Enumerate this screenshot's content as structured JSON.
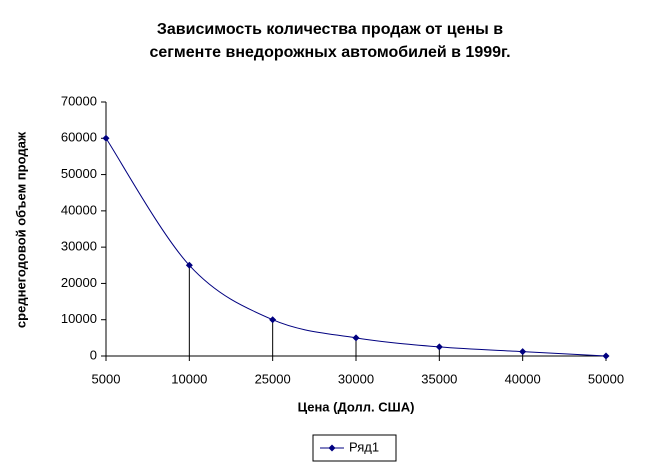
{
  "chart_data": {
    "type": "line",
    "title": [
      "Зависимость количества продаж от цены в",
      "сегменте внедорожных автомобилей в 1999г."
    ],
    "x_label": "Цена (Долл. США)",
    "y_label": "среднегодовой объем продаж",
    "categories": [
      "5000",
      "10000",
      "25000",
      "30000",
      "35000",
      "40000",
      "50000"
    ],
    "series": [
      {
        "name": "Ряд1",
        "color": "#000080",
        "values": [
          60000,
          25000,
          10000,
          5000,
          2500,
          1200,
          0
        ]
      }
    ],
    "ylim": [
      0,
      70000
    ],
    "yticks": [
      0,
      10000,
      20000,
      30000,
      40000,
      50000,
      60000,
      70000
    ],
    "smooth": true,
    "drop_lines": true,
    "legend": "bottom"
  }
}
